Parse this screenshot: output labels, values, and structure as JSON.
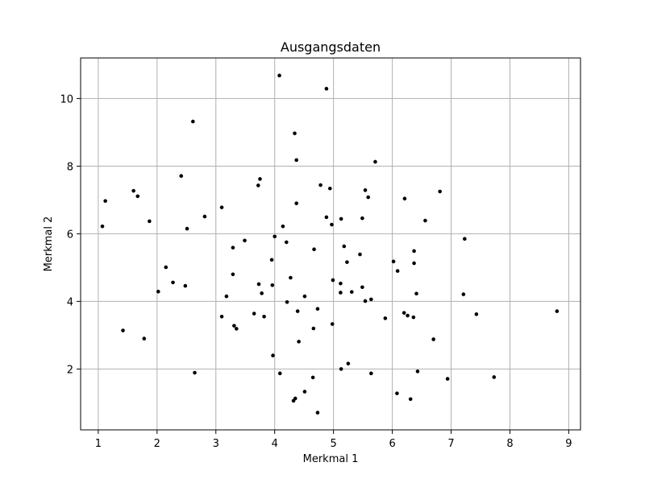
{
  "chart_data": {
    "type": "scatter",
    "title": "Ausgangsdaten",
    "xlabel": "Merkmal 1",
    "ylabel": "Merkmal 2",
    "xlim": [
      0.7,
      9.2
    ],
    "ylim": [
      0.2,
      11.2
    ],
    "xticks": [
      1,
      2,
      3,
      4,
      5,
      6,
      7,
      8,
      9
    ],
    "yticks": [
      2,
      4,
      6,
      8,
      10
    ],
    "grid": true,
    "colors": {
      "point": "#000000",
      "grid": "#b0b0b0",
      "axis": "#000000",
      "background": "#ffffff"
    },
    "x": [
      4.08,
      4.88,
      2.61,
      4.34,
      4.37,
      5.71,
      3.75,
      3.72,
      4.78,
      4.94,
      1.12,
      1.6,
      1.67,
      2.41,
      6.81,
      5.54,
      5.59,
      6.21,
      4.37,
      3.1,
      1.87,
      6.56,
      2.81,
      4.88,
      5.13,
      5.49,
      4.97,
      1.07,
      4.14,
      2.51,
      7.23,
      3.49,
      4.0,
      4.2,
      3.29,
      5.18,
      4.67,
      6.37,
      5.45,
      3.95,
      5.23,
      6.02,
      6.37,
      2.15,
      6.09,
      3.29,
      4.27,
      4.99,
      5.12,
      2.27,
      3.73,
      2.48,
      3.96,
      5.49,
      2.02,
      6.41,
      5.12,
      3.78,
      5.31,
      7.21,
      3.18,
      4.51,
      5.64,
      5.54,
      4.21,
      4.73,
      4.39,
      3.65,
      6.2,
      6.26,
      7.43,
      8.8,
      3.1,
      3.82,
      6.36,
      5.88,
      4.98,
      3.31,
      3.35,
      4.66,
      1.42,
      1.78,
      4.41,
      6.7,
      3.97,
      5.25,
      5.13,
      6.43,
      2.64,
      5.64,
      4.09,
      4.65,
      6.94,
      7.73,
      4.51,
      6.08,
      4.35,
      6.31,
      4.32,
      4.73
    ],
    "y": [
      10.68,
      10.29,
      9.32,
      8.97,
      8.18,
      8.13,
      7.62,
      7.43,
      7.44,
      7.34,
      6.97,
      7.27,
      7.11,
      7.71,
      7.25,
      7.29,
      7.08,
      7.04,
      6.9,
      6.78,
      6.37,
      6.39,
      6.51,
      6.49,
      6.44,
      6.46,
      6.27,
      6.22,
      6.22,
      6.15,
      5.85,
      5.8,
      5.92,
      5.75,
      5.59,
      5.63,
      5.54,
      5.49,
      5.39,
      5.23,
      5.16,
      5.18,
      5.13,
      5.01,
      4.9,
      4.8,
      4.7,
      4.63,
      4.53,
      4.56,
      4.51,
      4.46,
      4.48,
      4.42,
      4.29,
      4.23,
      4.26,
      4.24,
      4.28,
      4.21,
      4.15,
      4.15,
      4.06,
      4.01,
      3.98,
      3.78,
      3.71,
      3.64,
      3.66,
      3.58,
      3.62,
      3.71,
      3.55,
      3.55,
      3.53,
      3.5,
      3.33,
      3.28,
      3.19,
      3.2,
      3.14,
      2.9,
      2.81,
      2.88,
      2.4,
      2.16,
      2.0,
      1.93,
      1.89,
      1.87,
      1.87,
      1.75,
      1.71,
      1.76,
      1.33,
      1.28,
      1.13,
      1.11,
      1.06,
      0.71
    ]
  }
}
